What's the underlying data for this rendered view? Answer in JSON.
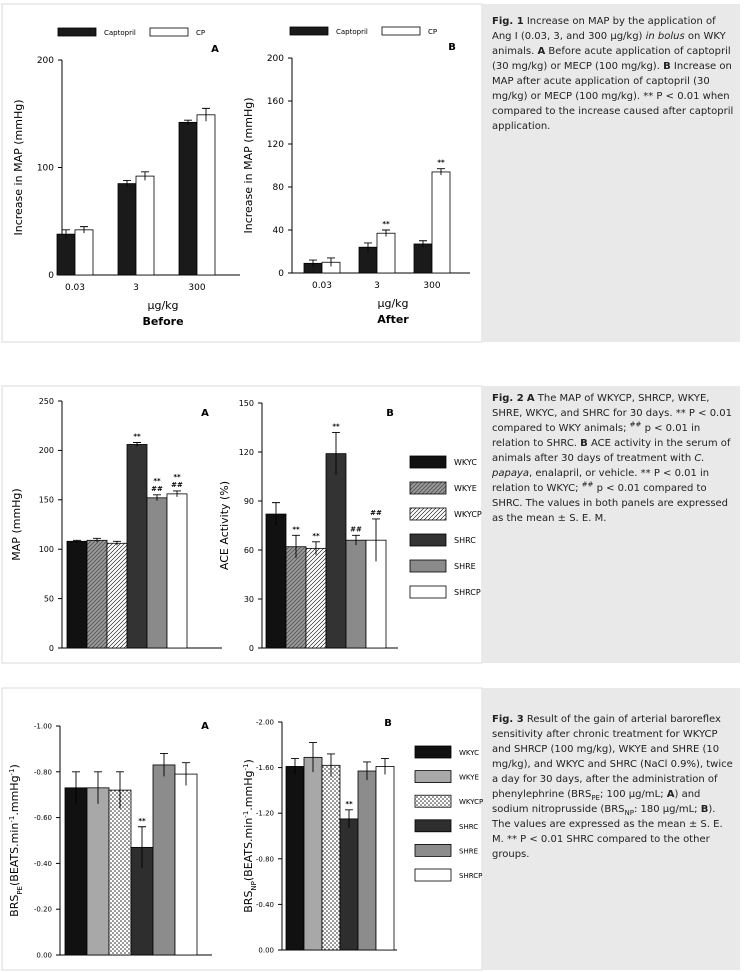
{
  "chart_data": [
    {
      "type": "bar",
      "panel": "A",
      "ylabel": "Increase in MAP (mmHg)",
      "xlabel": "µg/kg",
      "note": "Before",
      "categories": [
        "0.03",
        "3",
        "300"
      ],
      "ylim": [
        0,
        200
      ],
      "yticks": [
        0,
        100,
        200
      ],
      "series": [
        {
          "name": "Captopril",
          "color": "#1a1a1a",
          "values": [
            38,
            85,
            142
          ],
          "errors": [
            4,
            3,
            2
          ]
        },
        {
          "name": "CP",
          "color": "#ffffff",
          "values": [
            42,
            92,
            149
          ],
          "errors": [
            3,
            4,
            6
          ]
        }
      ]
    },
    {
      "type": "bar",
      "panel": "B",
      "ylabel": "Increase in MAP (mmHg)",
      "xlabel": "µg/kg",
      "note": "After",
      "categories": [
        "0.03",
        "3",
        "300"
      ],
      "ylim": [
        0,
        200
      ],
      "yticks": [
        0,
        40,
        80,
        120,
        160,
        200
      ],
      "series": [
        {
          "name": "Captopril",
          "color": "#1a1a1a",
          "values": [
            9,
            24,
            27
          ],
          "errors": [
            3,
            4,
            3
          ]
        },
        {
          "name": "CP",
          "color": "#ffffff",
          "values": [
            10,
            37,
            94
          ],
          "errors": [
            4,
            3,
            3
          ],
          "stars": [
            null,
            [
              "**"
            ],
            [
              "**"
            ]
          ]
        }
      ]
    },
    {
      "type": "bar",
      "panel": "A",
      "ylabel": "MAP (mmHg)",
      "ylim": [
        0,
        250
      ],
      "yticks": [
        0,
        50,
        100,
        150,
        200,
        250
      ],
      "series": [
        {
          "name": "WKYC",
          "color": "#111111",
          "values": [
            108
          ],
          "errors": [
            1
          ]
        },
        {
          "name": "WKYE",
          "color": "#9a9a9a",
          "pattern": "stripe",
          "values": [
            109
          ],
          "errors": [
            2
          ]
        },
        {
          "name": "WKYCP",
          "color": "#ffffff",
          "pattern": "hatch",
          "values": [
            106
          ],
          "errors": [
            2
          ]
        },
        {
          "name": "SHRC",
          "color": "#333333",
          "values": [
            206
          ],
          "errors": [
            2
          ],
          "stars": [
            [
              "**"
            ]
          ]
        },
        {
          "name": "SHRE",
          "color": "#8a8a8a",
          "values": [
            152
          ],
          "errors": [
            3
          ],
          "stars": [
            [
              "**",
              "##"
            ]
          ]
        },
        {
          "name": "SHRCP",
          "color": "#ffffff",
          "values": [
            156
          ],
          "errors": [
            3
          ],
          "stars": [
            [
              "**",
              "##"
            ]
          ]
        }
      ]
    },
    {
      "type": "bar",
      "panel": "B",
      "ylabel": "ACE Activity (%)",
      "ylim": [
        0,
        150
      ],
      "yticks": [
        0,
        30,
        60,
        90,
        120,
        150
      ],
      "series": [
        {
          "color": "#111111",
          "values": [
            82
          ],
          "errors": [
            7
          ]
        },
        {
          "color": "#9a9a9a",
          "pattern": "stripe",
          "values": [
            62
          ],
          "errors": [
            7
          ],
          "stars": [
            [
              "**"
            ]
          ]
        },
        {
          "color": "#ffffff",
          "pattern": "hatch",
          "values": [
            61
          ],
          "errors": [
            4
          ],
          "stars": [
            [
              "**"
            ]
          ]
        },
        {
          "color": "#333333",
          "values": [
            119
          ],
          "errors": [
            13
          ],
          "stars": [
            [
              "**"
            ]
          ]
        },
        {
          "color": "#8a8a8a",
          "values": [
            66
          ],
          "errors": [
            3
          ],
          "stars": [
            [
              "##"
            ]
          ]
        },
        {
          "color": "#ffffff",
          "values": [
            66
          ],
          "errors": [
            13
          ],
          "stars": [
            [
              "##"
            ]
          ]
        }
      ]
    },
    {
      "type": "bar",
      "panel": "A",
      "ylabel": [
        {
          "text": "BRS"
        },
        {
          "text": "PE",
          "style": "sub"
        },
        {
          "text": "(BEATS.min"
        },
        {
          "text": "-1",
          "style": "sup"
        },
        {
          "text": ".mmHg"
        },
        {
          "text": "-1",
          "style": "sup"
        },
        {
          "text": ")"
        }
      ],
      "ylim": [
        0,
        -1.0
      ],
      "yticks": [
        {
          "value": 0,
          "label": "0.00"
        },
        {
          "value": -0.2,
          "label": "-0.20"
        },
        {
          "value": -0.4,
          "label": "-0.40"
        },
        {
          "value": -0.6,
          "label": "-0.60"
        },
        {
          "value": -0.8,
          "label": "-0.80"
        },
        {
          "value": -1.0,
          "label": "-1.00"
        }
      ],
      "series": [
        {
          "name": "WKYC",
          "color": "#111111",
          "values": [
            -0.73
          ],
          "errors": [
            0.07
          ]
        },
        {
          "name": "WKYE",
          "color": "#a8a8a8",
          "values": [
            -0.73
          ],
          "errors": [
            0.07
          ]
        },
        {
          "name": "WKYCP",
          "color": "#ffffff",
          "pattern": "dots",
          "values": [
            -0.72
          ],
          "errors": [
            0.08
          ]
        },
        {
          "name": "SHRC",
          "color": "#2e2e2e",
          "values": [
            -0.47
          ],
          "errors": [
            0.09
          ],
          "stars": [
            [
              "**"
            ]
          ]
        },
        {
          "name": "SHRE",
          "color": "#8c8c8c",
          "values": [
            -0.83
          ],
          "errors": [
            0.05
          ]
        },
        {
          "name": "SHRCP",
          "color": "#ffffff",
          "values": [
            -0.79
          ],
          "errors": [
            0.05
          ]
        }
      ]
    },
    {
      "type": "bar",
      "panel": "B",
      "ylabel": [
        {
          "text": "BRS"
        },
        {
          "text": "NP",
          "style": "sub"
        },
        {
          "text": "(BEATS.min"
        },
        {
          "text": "-1",
          "style": "sup"
        },
        {
          "text": ".mmHg"
        },
        {
          "text": "-1",
          "style": "sup"
        },
        {
          "text": ")"
        }
      ],
      "ylim": [
        0,
        -2.0
      ],
      "yticks": [
        {
          "value": 0,
          "label": "0.00"
        },
        {
          "value": -0.4,
          "label": "-0.40"
        },
        {
          "value": -0.8,
          "label": "-0.80"
        },
        {
          "value": -1.2,
          "label": "-1.20"
        },
        {
          "value": -1.6,
          "label": "-1.60"
        },
        {
          "value": -2.0,
          "label": "-2.00"
        }
      ],
      "series": [
        {
          "color": "#111111",
          "values": [
            -1.61
          ],
          "errors": [
            0.07
          ]
        },
        {
          "color": "#a8a8a8",
          "values": [
            -1.69
          ],
          "errors": [
            0.13
          ]
        },
        {
          "color": "#ffffff",
          "pattern": "dots",
          "values": [
            -1.62
          ],
          "errors": [
            0.1
          ]
        },
        {
          "color": "#2e2e2e",
          "values": [
            -1.15
          ],
          "errors": [
            0.08
          ],
          "stars": [
            [
              "**"
            ]
          ]
        },
        {
          "color": "#8c8c8c",
          "values": [
            -1.57
          ],
          "errors": [
            0.08
          ]
        },
        {
          "color": "#ffffff",
          "values": [
            -1.61
          ],
          "errors": [
            0.07
          ]
        }
      ]
    }
  ],
  "captions": [
    {
      "runs": [
        {
          "text": "Fig. 1",
          "style": "bold"
        },
        {
          "text": "   Increase on MAP by the application of Ang I (0.03, 3, and 300 µg/kg) "
        },
        {
          "text": "in bolus",
          "style": "italic"
        },
        {
          "text": " on WKY animals. "
        },
        {
          "text": "A",
          "style": "bold"
        },
        {
          "text": " Before acute application of captopril (30 mg/kg) or MECP (100 mg/kg). "
        },
        {
          "text": "B",
          "style": "bold"
        },
        {
          "text": " Increase on MAP after acute application of captopril (30 mg/kg) or MECP (100 mg/kg). ** P < 0.01 when compared to the increase caused after captopril application."
        }
      ]
    },
    {
      "runs": [
        {
          "text": "Fig. 2",
          "style": "bold"
        },
        {
          "text": "   "
        },
        {
          "text": "A",
          "style": "bold"
        },
        {
          "text": " The MAP of WKYCP, SHRCP, WKYE, SHRE, WKYC, and SHRC for 30 days. ** P < 0.01 compared to WKY animals; "
        },
        {
          "text": "##",
          "style": "sup"
        },
        {
          "text": " p < 0.01 in relation to SHRC. "
        },
        {
          "text": "B",
          "style": "bold"
        },
        {
          "text": " ACE activity in the serum of animals after 30 days of treatment with "
        },
        {
          "text": "C. papaya",
          "style": "italic"
        },
        {
          "text": ", enalapril, or vehicle. ** P < 0.01 in relation to WKYC; "
        },
        {
          "text": "##",
          "style": "sup"
        },
        {
          "text": " p < 0.01 compared to SHRC. The values in both panels are expressed as the mean ± S. E. M."
        }
      ]
    },
    {
      "runs": [
        {
          "text": "Fig. 3",
          "style": "bold"
        },
        {
          "text": "   Result of the gain of arterial baroreflex sensitivity after chronic treatment for WKYCP and SHRCP (100 mg/kg), WKYE and SHRE (10 mg/kg), and WKYC and SHRC (NaCl 0.9%), twice a day for 30 days, after the administration of phenylephrine (BRS"
        },
        {
          "text": "PE",
          "style": "sub"
        },
        {
          "text": "; 100 µg/mL; "
        },
        {
          "text": "A",
          "style": "bold"
        },
        {
          "text": ") and sodium nitroprusside (BRS"
        },
        {
          "text": "NP",
          "style": "sub"
        },
        {
          "text": ": 180 µg/mL; "
        },
        {
          "text": "B",
          "style": "bold"
        },
        {
          "text": "). The values are expressed as the mean ± S. E. M. ** P < 0.01 SHRC compared to the other groups."
        }
      ]
    }
  ]
}
